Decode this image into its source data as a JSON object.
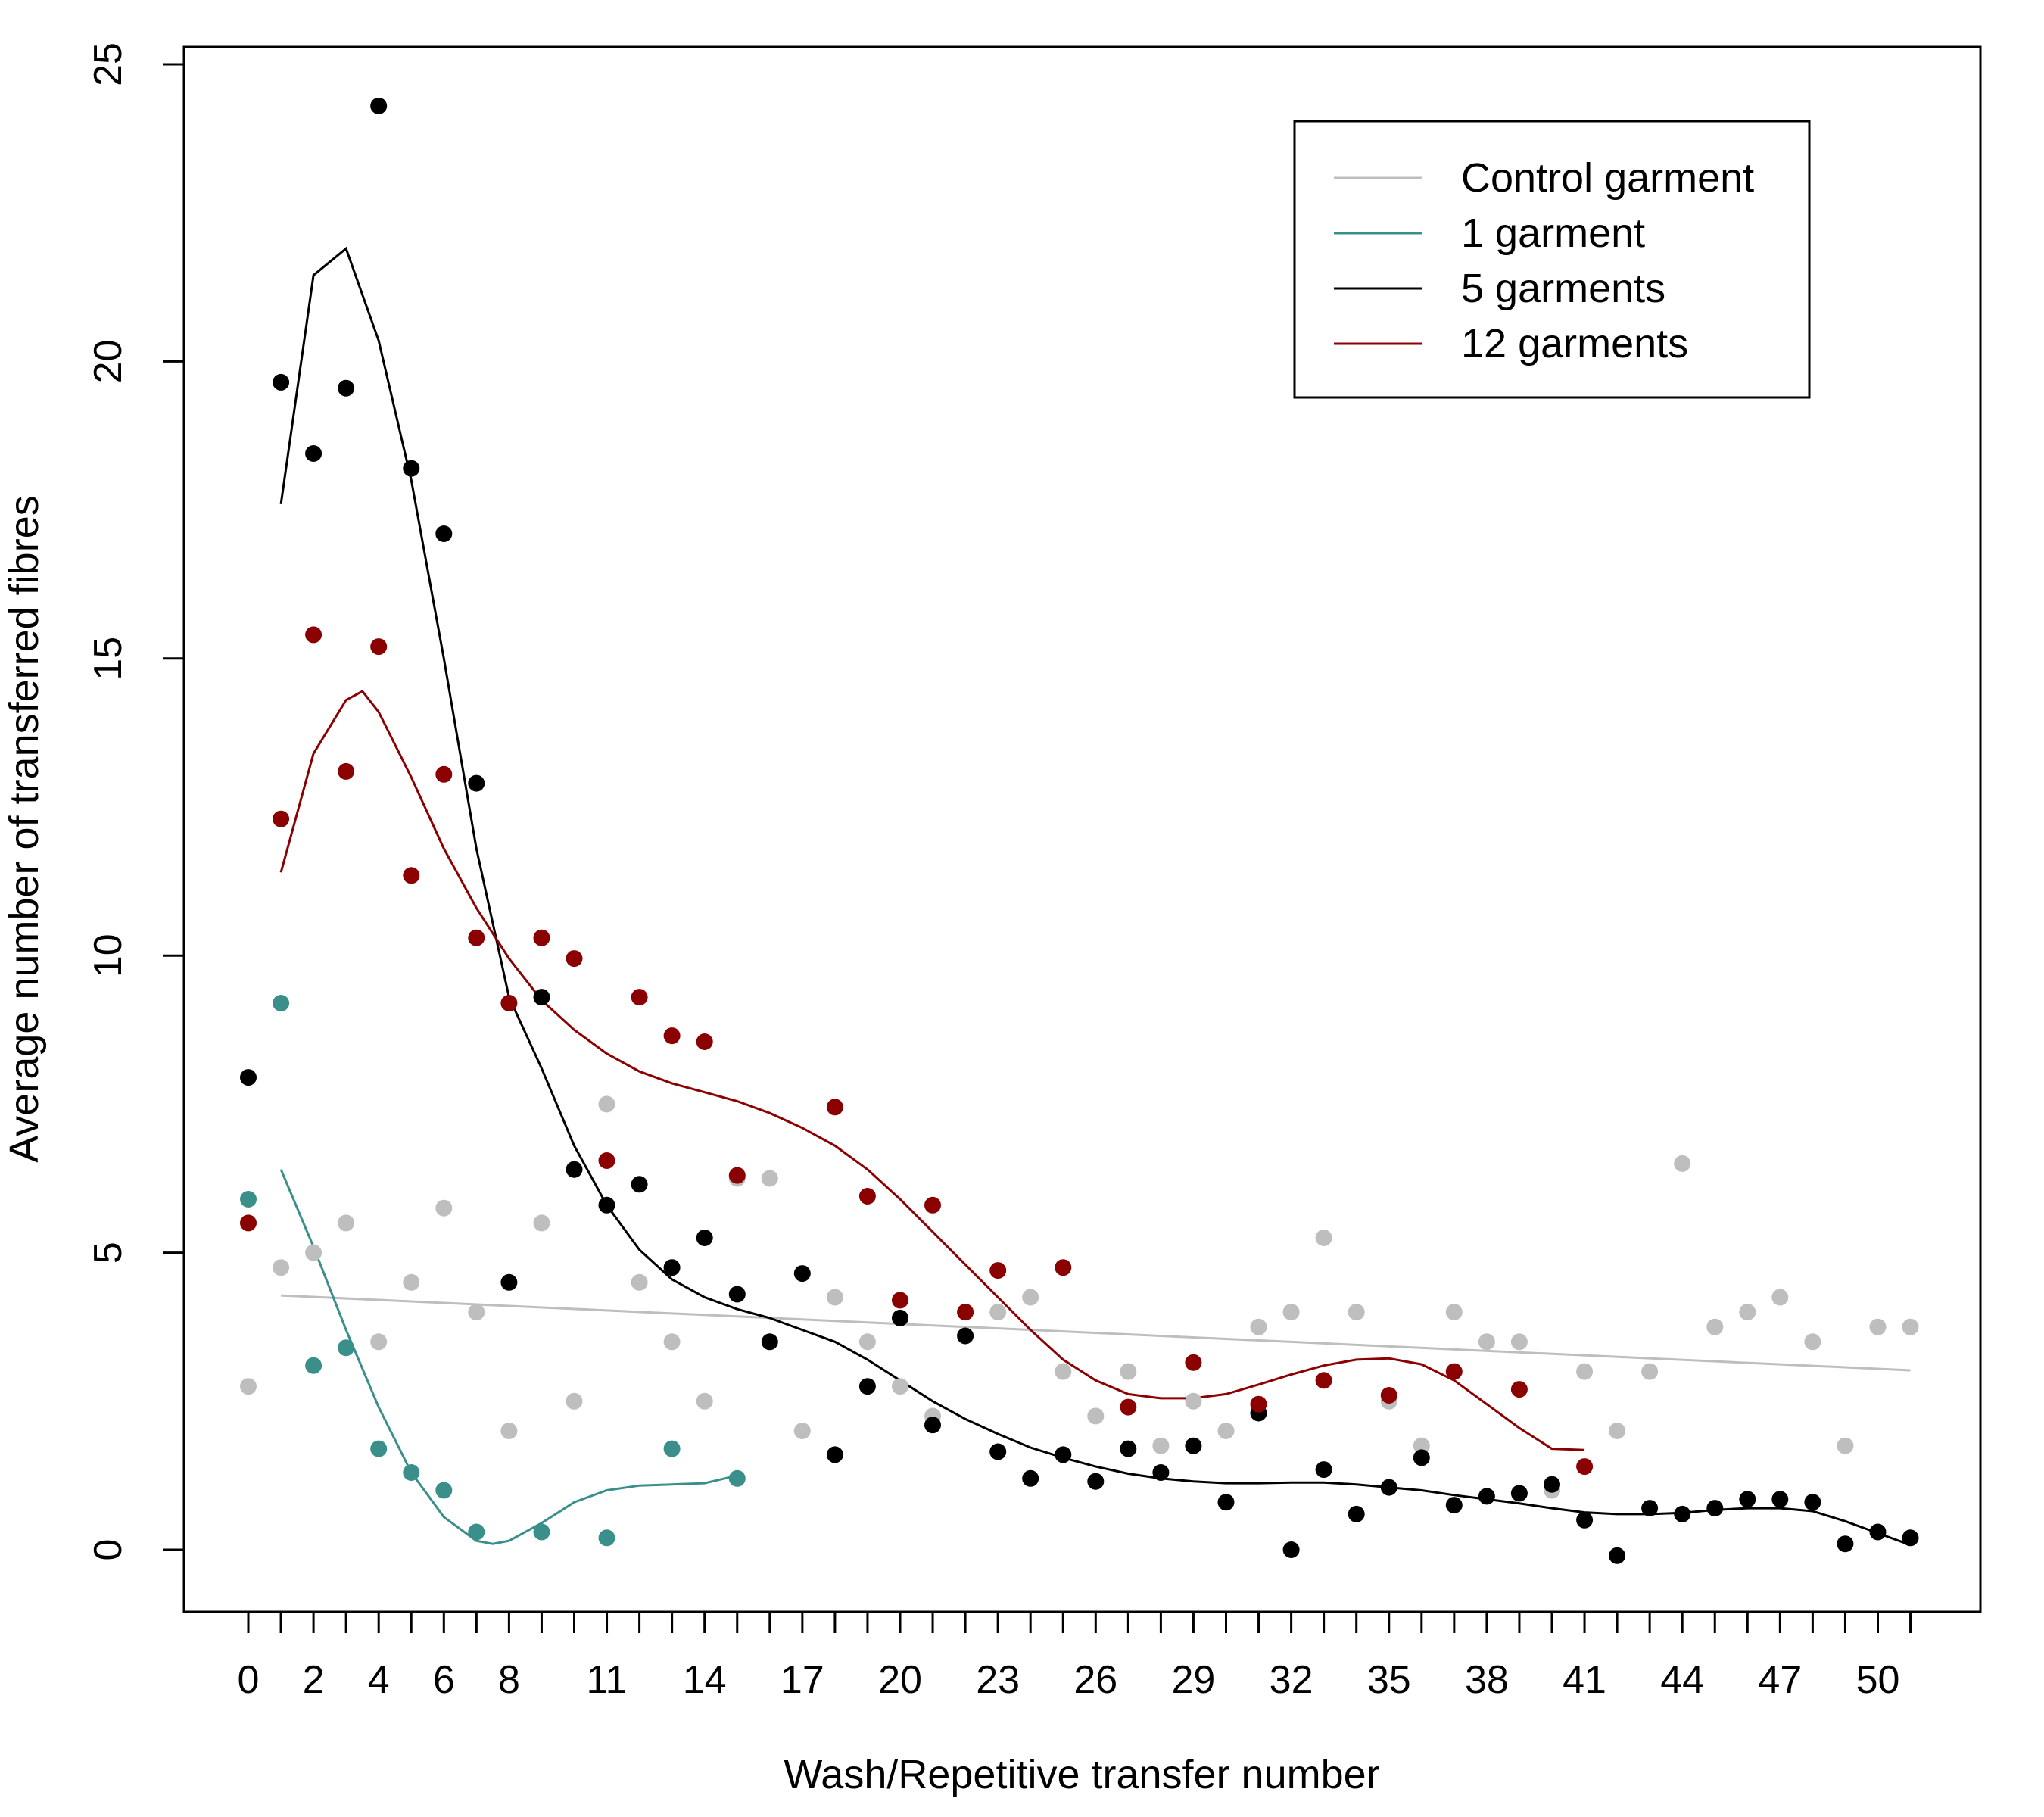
{
  "chart_data": {
    "type": "scatter",
    "xlabel": "Wash/Repetitive transfer number",
    "ylabel": "Average number of transferred fibres",
    "xlim": [
      0,
      51
    ],
    "ylim": [
      0,
      25
    ],
    "x_tick_positions": [
      0,
      1,
      2,
      3,
      4,
      5,
      6,
      7,
      8,
      9,
      10,
      11,
      12,
      13,
      14,
      15,
      16,
      17,
      18,
      19,
      20,
      21,
      22,
      23,
      24,
      25,
      26,
      27,
      28,
      29,
      30,
      31,
      32,
      33,
      34,
      35,
      36,
      37,
      38,
      39,
      40,
      41,
      42,
      43,
      44,
      45,
      46,
      47,
      48,
      49,
      50,
      51
    ],
    "x_tick_labels": [
      "0",
      "2",
      "4",
      "6",
      "8",
      "11",
      "14",
      "17",
      "20",
      "23",
      "26",
      "29",
      "32",
      "35",
      "38",
      "41",
      "44",
      "47",
      "50"
    ],
    "x_tick_label_positions": [
      0,
      2,
      4,
      6,
      8,
      11,
      14,
      17,
      20,
      23,
      26,
      29,
      32,
      35,
      38,
      41,
      44,
      47,
      50
    ],
    "y_ticks": [
      0,
      5,
      10,
      15,
      20,
      25
    ],
    "y_tick_labels": [
      "0",
      "5",
      "10",
      "15",
      "20",
      "25"
    ],
    "grid": false,
    "legend_position": "top-right",
    "series": [
      {
        "name": "Control garment",
        "color": "#bebebe",
        "points": [
          [
            0,
            2.75
          ],
          [
            1,
            4.75
          ],
          [
            2,
            5.0
          ],
          [
            3,
            5.5
          ],
          [
            4,
            3.5
          ],
          [
            5,
            4.5
          ],
          [
            6,
            5.75
          ],
          [
            7,
            4.0
          ],
          [
            8,
            2.0
          ],
          [
            9,
            5.5
          ],
          [
            10,
            2.5
          ],
          [
            11,
            7.5
          ],
          [
            12,
            4.5
          ],
          [
            13,
            3.5
          ],
          [
            14,
            2.5
          ],
          [
            15,
            6.25
          ],
          [
            16,
            6.25
          ],
          [
            17,
            2.0
          ],
          [
            18,
            4.25
          ],
          [
            19,
            3.5
          ],
          [
            20,
            2.75
          ],
          [
            21,
            2.25
          ],
          [
            22,
            4.0
          ],
          [
            23,
            4.0
          ],
          [
            24,
            4.25
          ],
          [
            25,
            3.0
          ],
          [
            26,
            2.25
          ],
          [
            27,
            3.0
          ],
          [
            28,
            1.75
          ],
          [
            29,
            2.5
          ],
          [
            30,
            2.0
          ],
          [
            31,
            3.75
          ],
          [
            32,
            4.0
          ],
          [
            33,
            5.25
          ],
          [
            34,
            4.0
          ],
          [
            35,
            2.5
          ],
          [
            36,
            1.75
          ],
          [
            37,
            4.0
          ],
          [
            38,
            3.5
          ],
          [
            39,
            3.5
          ],
          [
            40,
            1.0
          ],
          [
            41,
            3.0
          ],
          [
            42,
            2.0
          ],
          [
            43,
            3.0
          ],
          [
            44,
            6.5
          ],
          [
            45,
            3.75
          ],
          [
            46,
            4.0
          ],
          [
            47,
            4.25
          ],
          [
            48,
            3.5
          ],
          [
            49,
            1.75
          ],
          [
            50,
            3.75
          ],
          [
            51,
            3.75
          ]
        ],
        "trend": [
          [
            1,
            4.28
          ],
          [
            51,
            3.02
          ]
        ]
      },
      {
        "name": "1 garment",
        "color": "#3a8f8a",
        "points": [
          [
            0,
            5.9
          ],
          [
            1,
            9.2
          ],
          [
            2,
            3.1
          ],
          [
            3,
            3.4
          ],
          [
            4,
            1.7
          ],
          [
            5,
            1.3
          ],
          [
            6,
            1.0
          ],
          [
            7,
            0.3
          ],
          [
            9,
            0.3
          ],
          [
            11,
            0.2
          ],
          [
            13,
            1.7
          ],
          [
            15,
            1.2
          ]
        ],
        "trend": [
          [
            1,
            6.4
          ],
          [
            2,
            5.1
          ],
          [
            3,
            3.7
          ],
          [
            4,
            2.4
          ],
          [
            5,
            1.3
          ],
          [
            6,
            0.55
          ],
          [
            7,
            0.15
          ],
          [
            7.5,
            0.1
          ],
          [
            8,
            0.15
          ],
          [
            9,
            0.45
          ],
          [
            10,
            0.8
          ],
          [
            11,
            1.0
          ],
          [
            12,
            1.08
          ],
          [
            13,
            1.1
          ],
          [
            14,
            1.12
          ],
          [
            15,
            1.25
          ]
        ]
      },
      {
        "name": "5 garments",
        "color": "#000000",
        "points": [
          [
            0,
            7.95
          ],
          [
            1,
            19.65
          ],
          [
            2,
            18.45
          ],
          [
            3,
            19.55
          ],
          [
            4,
            24.3
          ],
          [
            5,
            18.2
          ],
          [
            6,
            17.1
          ],
          [
            7,
            12.9
          ],
          [
            8,
            4.5
          ],
          [
            9,
            9.3
          ],
          [
            10,
            6.4
          ],
          [
            11,
            5.8
          ],
          [
            12,
            6.15
          ],
          [
            13,
            4.75
          ],
          [
            14,
            5.25
          ],
          [
            15,
            4.3
          ],
          [
            16,
            3.5
          ],
          [
            17,
            4.65
          ],
          [
            18,
            1.6
          ],
          [
            19,
            2.75
          ],
          [
            20,
            3.9
          ],
          [
            21,
            2.1
          ],
          [
            22,
            3.6
          ],
          [
            23,
            1.65
          ],
          [
            24,
            1.2
          ],
          [
            25,
            1.6
          ],
          [
            26,
            1.15
          ],
          [
            27,
            1.7
          ],
          [
            28,
            1.3
          ],
          [
            29,
            1.75
          ],
          [
            30,
            0.8
          ],
          [
            31,
            2.3
          ],
          [
            32,
            0.0
          ],
          [
            33,
            1.35
          ],
          [
            34,
            0.6
          ],
          [
            35,
            1.05
          ],
          [
            36,
            1.55
          ],
          [
            37,
            0.75
          ],
          [
            38,
            0.9
          ],
          [
            39,
            0.95
          ],
          [
            40,
            1.1
          ],
          [
            41,
            0.5
          ],
          [
            42,
            -0.1
          ],
          [
            43,
            0.7
          ],
          [
            44,
            0.6
          ],
          [
            45,
            0.7
          ],
          [
            46,
            0.85
          ],
          [
            47,
            0.85
          ],
          [
            48,
            0.8
          ],
          [
            49,
            0.1
          ],
          [
            50,
            0.3
          ],
          [
            51,
            0.2
          ]
        ],
        "trend": [
          [
            1,
            17.6
          ],
          [
            2,
            21.45
          ],
          [
            3,
            21.9
          ],
          [
            4,
            20.35
          ],
          [
            5,
            18.0
          ],
          [
            6,
            15.0
          ],
          [
            7,
            11.8
          ],
          [
            8,
            9.3
          ],
          [
            9,
            8.1
          ],
          [
            10,
            6.8
          ],
          [
            11,
            5.8
          ],
          [
            12,
            5.05
          ],
          [
            13,
            4.55
          ],
          [
            14,
            4.25
          ],
          [
            15,
            4.05
          ],
          [
            16,
            3.9
          ],
          [
            17,
            3.7
          ],
          [
            18,
            3.5
          ],
          [
            19,
            3.2
          ],
          [
            20,
            2.85
          ],
          [
            21,
            2.5
          ],
          [
            22,
            2.2
          ],
          [
            23,
            1.95
          ],
          [
            24,
            1.72
          ],
          [
            25,
            1.55
          ],
          [
            26,
            1.4
          ],
          [
            27,
            1.28
          ],
          [
            28,
            1.2
          ],
          [
            29,
            1.15
          ],
          [
            30,
            1.12
          ],
          [
            31,
            1.12
          ],
          [
            32,
            1.13
          ],
          [
            33,
            1.13
          ],
          [
            34,
            1.1
          ],
          [
            35,
            1.05
          ],
          [
            36,
            1.0
          ],
          [
            37,
            0.92
          ],
          [
            38,
            0.85
          ],
          [
            39,
            0.78
          ],
          [
            40,
            0.7
          ],
          [
            41,
            0.63
          ],
          [
            42,
            0.6
          ],
          [
            43,
            0.6
          ],
          [
            44,
            0.62
          ],
          [
            45,
            0.67
          ],
          [
            46,
            0.7
          ],
          [
            47,
            0.7
          ],
          [
            48,
            0.65
          ],
          [
            49,
            0.48
          ],
          [
            50,
            0.28
          ],
          [
            51,
            0.08
          ]
        ]
      },
      {
        "name": "12 garments",
        "color": "#8b0000",
        "points": [
          [
            0,
            5.5
          ],
          [
            1,
            12.3
          ],
          [
            2,
            15.4
          ],
          [
            3,
            13.1
          ],
          [
            4,
            15.2
          ],
          [
            5,
            11.35
          ],
          [
            6,
            13.05
          ],
          [
            7,
            10.3
          ],
          [
            8,
            9.2
          ],
          [
            9,
            10.3
          ],
          [
            10,
            9.95
          ],
          [
            11,
            6.55
          ],
          [
            12,
            9.3
          ],
          [
            13,
            8.65
          ],
          [
            14,
            8.55
          ],
          [
            15,
            6.3
          ],
          [
            18,
            7.45
          ],
          [
            19,
            5.95
          ],
          [
            20,
            4.2
          ],
          [
            21,
            5.8
          ],
          [
            22,
            4.0
          ],
          [
            23,
            4.7
          ],
          [
            25,
            4.75
          ],
          [
            27,
            2.4
          ],
          [
            29,
            3.15
          ],
          [
            31,
            2.45
          ],
          [
            33,
            2.85
          ],
          [
            35,
            2.6
          ],
          [
            37,
            3.0
          ],
          [
            39,
            2.7
          ],
          [
            41,
            1.4
          ]
        ],
        "trend": [
          [
            1,
            11.4
          ],
          [
            2,
            13.4
          ],
          [
            3,
            14.3
          ],
          [
            3.5,
            14.45
          ],
          [
            4,
            14.1
          ],
          [
            5,
            13.0
          ],
          [
            6,
            11.8
          ],
          [
            7,
            10.8
          ],
          [
            8,
            9.95
          ],
          [
            9,
            9.25
          ],
          [
            10,
            8.75
          ],
          [
            11,
            8.35
          ],
          [
            12,
            8.05
          ],
          [
            13,
            7.85
          ],
          [
            14,
            7.7
          ],
          [
            15,
            7.55
          ],
          [
            16,
            7.35
          ],
          [
            17,
            7.1
          ],
          [
            18,
            6.8
          ],
          [
            19,
            6.4
          ],
          [
            20,
            5.9
          ],
          [
            21,
            5.35
          ],
          [
            22,
            4.8
          ],
          [
            23,
            4.25
          ],
          [
            24,
            3.7
          ],
          [
            25,
            3.2
          ],
          [
            26,
            2.85
          ],
          [
            27,
            2.62
          ],
          [
            28,
            2.55
          ],
          [
            29,
            2.55
          ],
          [
            30,
            2.62
          ],
          [
            31,
            2.78
          ],
          [
            32,
            2.95
          ],
          [
            33,
            3.1
          ],
          [
            34,
            3.2
          ],
          [
            35,
            3.22
          ],
          [
            36,
            3.12
          ],
          [
            37,
            2.85
          ],
          [
            38,
            2.45
          ],
          [
            39,
            2.05
          ],
          [
            40,
            1.7
          ],
          [
            41,
            1.68
          ]
        ]
      }
    ]
  }
}
